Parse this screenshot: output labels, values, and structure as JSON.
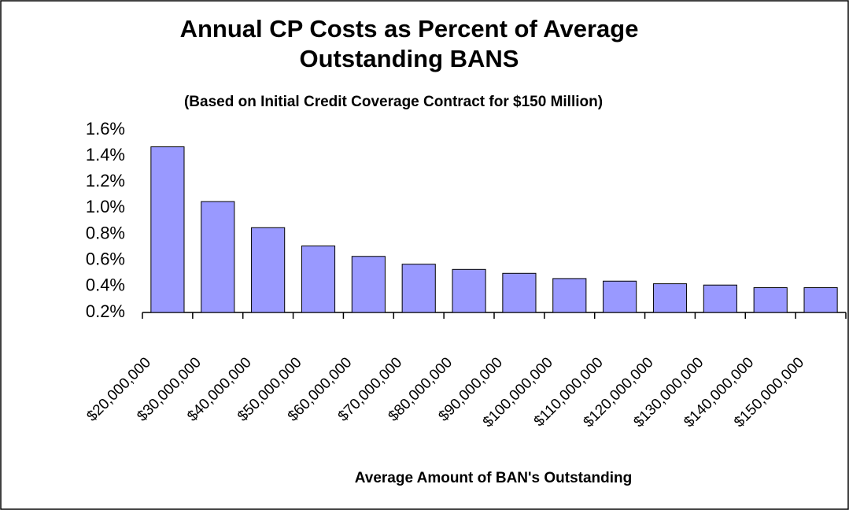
{
  "chart_data": {
    "type": "bar",
    "title": "Annual CP Costs as Percent of Average Outstanding BANS",
    "subtitle": "(Based on  Initial Credit Coverage Contract for $150 Million)",
    "x_label": "Average Amount of BAN's Outstanding",
    "categories": [
      "$20,000,000",
      "$30,000,000",
      "$40,000,000",
      "$50,000,000",
      "$60,000,000",
      "$70,000,000",
      "$80,000,000",
      "$90,000,000",
      "$100,000,000",
      "$110,000,000",
      "$120,000,000",
      "$130,000,000",
      "$140,000,000",
      "$150,000,000"
    ],
    "values": [
      1.47,
      1.05,
      0.85,
      0.71,
      0.63,
      0.57,
      0.53,
      0.5,
      0.46,
      0.44,
      0.42,
      0.41,
      0.39,
      0.39
    ],
    "color": "#9999ff",
    "ylim": [
      0.2,
      1.6
    ],
    "yticks": [
      {
        "value": 0.2,
        "label": "0.2%"
      },
      {
        "value": 0.4,
        "label": "0.4%"
      },
      {
        "value": 0.6,
        "label": "0.6%"
      },
      {
        "value": 0.8,
        "label": "0.8%"
      },
      {
        "value": 1.0,
        "label": "1.0%"
      },
      {
        "value": 1.2,
        "label": "1.2%"
      },
      {
        "value": 1.4,
        "label": "1.4%"
      },
      {
        "value": 1.6,
        "label": "1.6%"
      }
    ],
    "grid": false
  }
}
